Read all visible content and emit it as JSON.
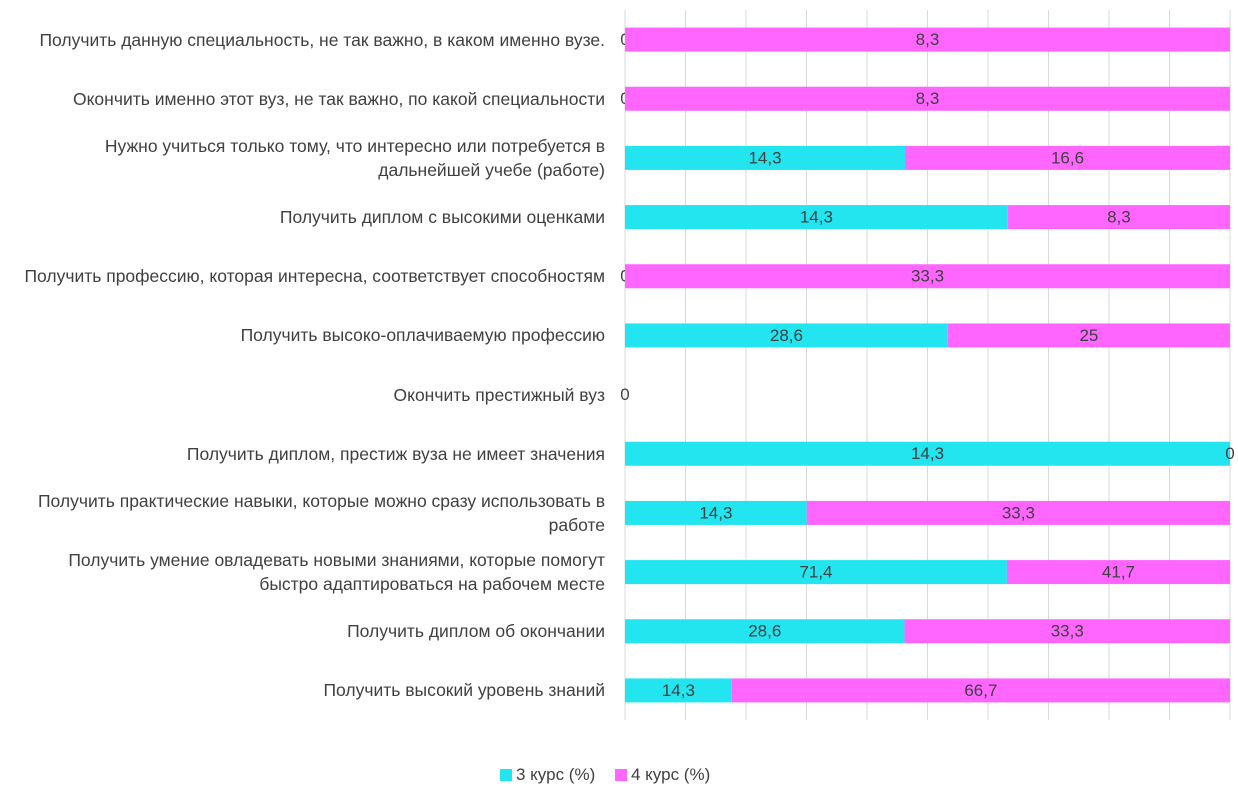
{
  "chart_data": {
    "type": "bar100h",
    "categories": [
      "Получить данную специальность, не так важно, в каком именно вузе.",
      "Окончить именно этот вуз, не так важно, по какой специальности",
      "Нужно учиться только тому, что интересно или потребуется в дальнейшей учебе (работе)",
      "Получить диплом с высокими оценками",
      "Получить профессию, которая интересна, соответствует способностям",
      "Получить высоко-оплачиваемую профессию",
      "Окончить престижный вуз",
      "Получить диплом, престиж вуза не имеет значения",
      "Получить практические навыки, которые можно сразу использовать в работе",
      "Получить умение овладевать новыми знаниями, которые помогут быстро адаптироваться на рабочем месте",
      "Получить диплом об окончании",
      "Получить высокий уровень знаний"
    ],
    "series": [
      {
        "name": "3 курс (%)",
        "color": "#22e5f0",
        "values": [
          0,
          0,
          14.3,
          14.3,
          0,
          28.6,
          0,
          14.3,
          14.3,
          71.4,
          28.6,
          14.3
        ],
        "value_labels": [
          "0",
          "0",
          "14,3",
          "14,3",
          "0",
          "28,6",
          "0",
          "14,3",
          "14,3",
          "71,4",
          "28,6",
          "14,3"
        ]
      },
      {
        "name": "4 курс (%)",
        "color": "#ff66ff",
        "values": [
          8.3,
          8.3,
          16.6,
          8.3,
          33.3,
          25,
          0,
          0,
          33.3,
          41.7,
          33.3,
          66.7
        ],
        "value_labels": [
          "8,3",
          "8,3",
          "16,6",
          "8,3",
          "33,3",
          "25",
          "",
          "0",
          "33,3",
          "41,7",
          "33,3",
          "66,7"
        ]
      }
    ],
    "xlim": [
      0,
      100
    ],
    "xticks": [
      0,
      10,
      20,
      30,
      40,
      50,
      60,
      70,
      80,
      90,
      100
    ],
    "grid": true,
    "legend": "bottom"
  }
}
